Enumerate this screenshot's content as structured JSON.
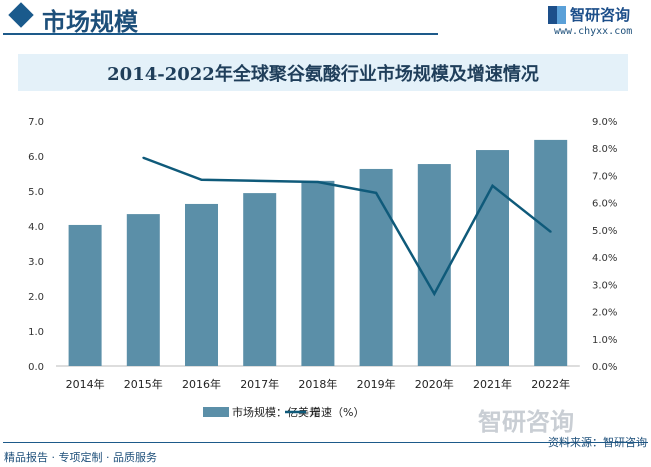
{
  "header": {
    "section_title": "市场规模",
    "logo_text": "智研咨询",
    "logo_url": "www.chyxx.com"
  },
  "footer": {
    "left": "精品报告 · 专项定制 · 品质服务",
    "source": "资料来源：智研咨询",
    "watermark": "智研咨询"
  },
  "colors": {
    "bar": "#5b8fa8",
    "line": "#0f5a7a"
  },
  "chart_data": {
    "type": "bar+line",
    "title": "2014-2022年全球聚谷氨酸行业市场规模及增速情况",
    "categories": [
      "2014年",
      "2015年",
      "2016年",
      "2017年",
      "2018年",
      "2019年",
      "2020年",
      "2021年",
      "2022年"
    ],
    "series": [
      {
        "name": "市场规模：亿美元",
        "type": "bar",
        "axis": "left",
        "values": [
          4.03,
          4.34,
          4.63,
          4.94,
          5.29,
          5.63,
          5.77,
          6.17,
          6.46
        ]
      },
      {
        "name": "增速（%）",
        "type": "line",
        "axis": "right",
        "values": [
          null,
          7.65,
          6.84,
          6.8,
          6.76,
          6.36,
          2.65,
          6.62,
          4.93
        ]
      }
    ],
    "ylim": [
      0,
      7
    ],
    "y_ticks": [
      "0.0",
      "1.0",
      "2.0",
      "3.0",
      "4.0",
      "5.0",
      "6.0",
      "7.0"
    ],
    "y2lim": [
      0,
      9
    ],
    "y2_ticks": [
      "0.0%",
      "1.0%",
      "2.0%",
      "3.0%",
      "4.0%",
      "5.0%",
      "6.0%",
      "7.0%",
      "8.0%",
      "9.0%"
    ],
    "grid": false,
    "legend": "bottom"
  }
}
